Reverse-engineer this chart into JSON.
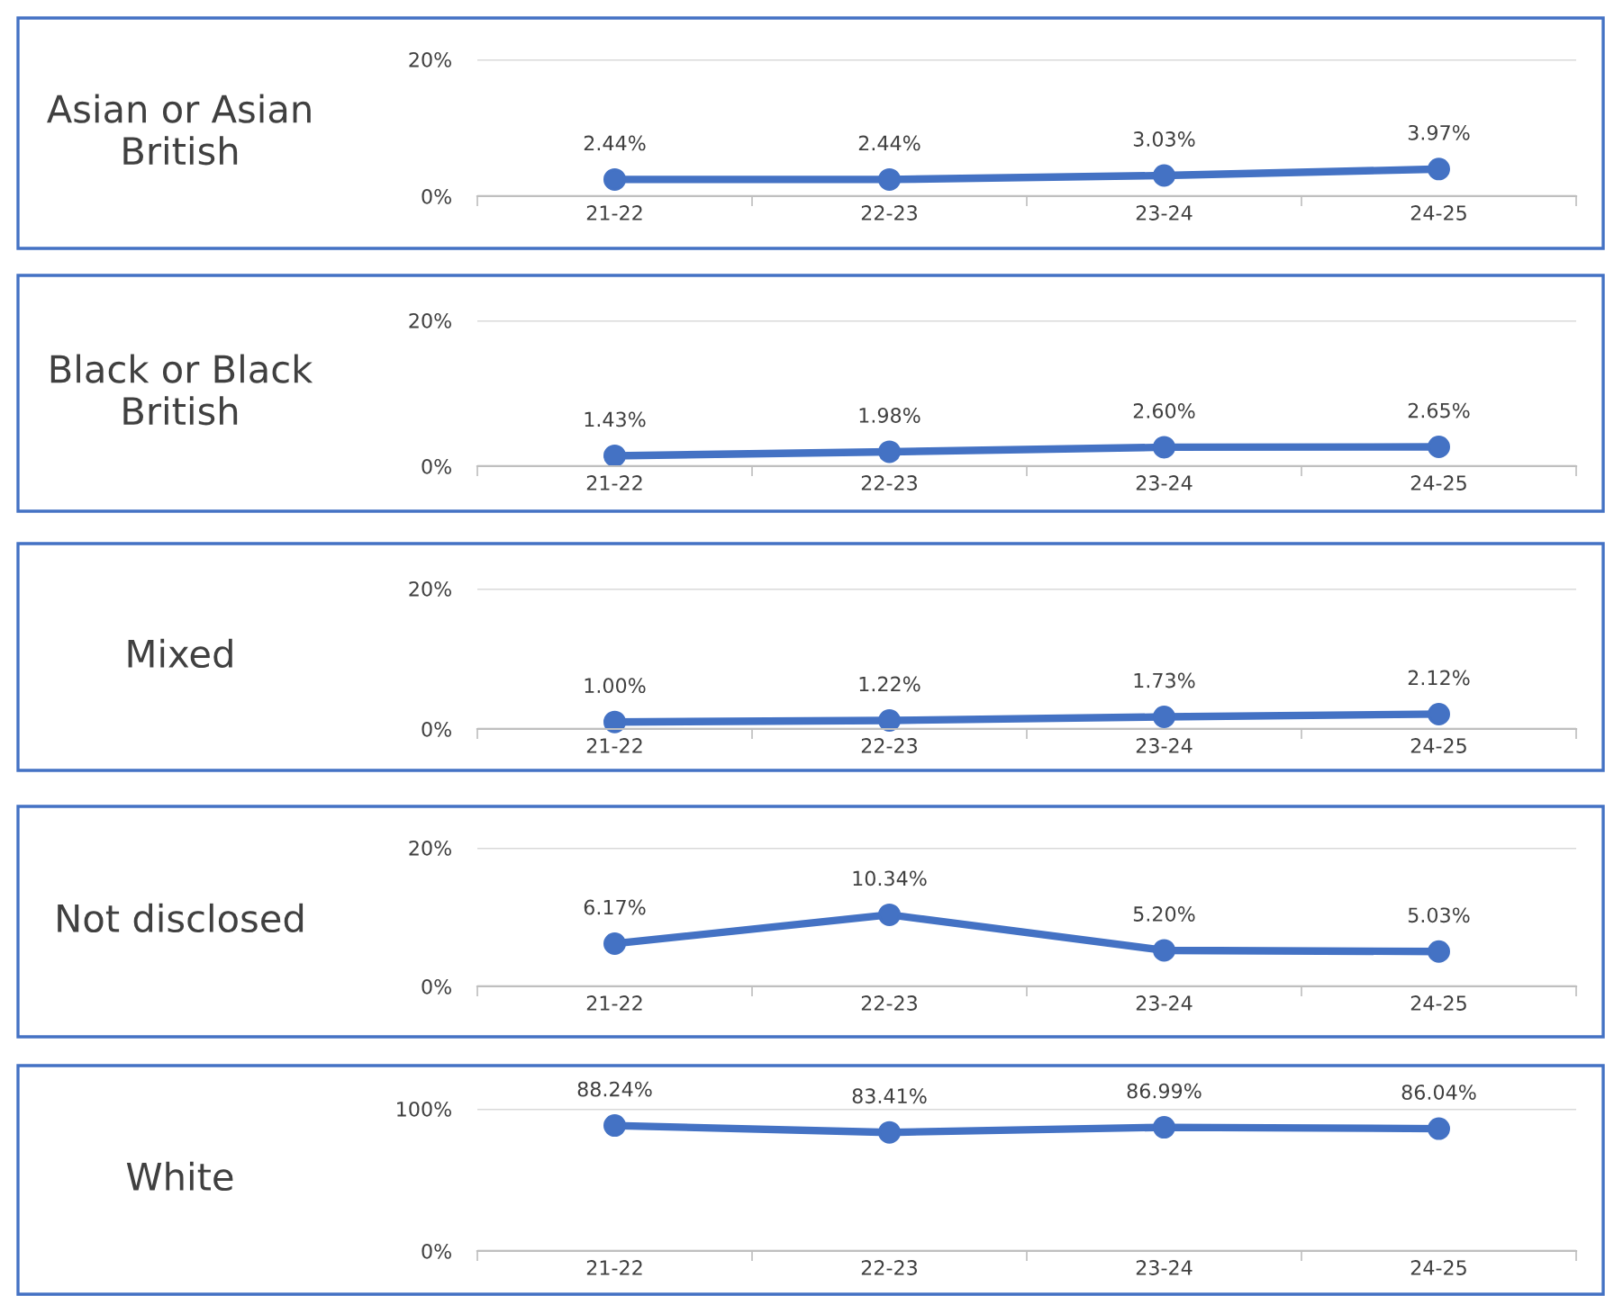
{
  "chart_data": [
    {
      "type": "line",
      "title": "Asian or Asian British",
      "categories": [
        "21-22",
        "22-23",
        "23-24",
        "24-25"
      ],
      "values": [
        2.44,
        2.44,
        3.03,
        3.97
      ],
      "value_labels": [
        "2.44%",
        "2.44%",
        "3.03%",
        "3.97%"
      ],
      "color": "#4472c4",
      "marker": "circle",
      "ylim": [
        0,
        20
      ],
      "yticks": [
        {
          "value": 0,
          "label": "0%"
        },
        {
          "value": 20,
          "label": "20%"
        }
      ],
      "grid": "y",
      "legend": false
    },
    {
      "type": "line",
      "title": "Black or Black British",
      "categories": [
        "21-22",
        "22-23",
        "23-24",
        "24-25"
      ],
      "values": [
        1.43,
        1.98,
        2.6,
        2.65
      ],
      "value_labels": [
        "1.43%",
        "1.98%",
        "2.60%",
        "2.65%"
      ],
      "color": "#4472c4",
      "marker": "circle",
      "ylim": [
        0,
        20
      ],
      "yticks": [
        {
          "value": 0,
          "label": "0%"
        },
        {
          "value": 20,
          "label": "20%"
        }
      ],
      "grid": "y",
      "legend": false
    },
    {
      "type": "line",
      "title": "Mixed",
      "categories": [
        "21-22",
        "22-23",
        "23-24",
        "24-25"
      ],
      "values": [
        1.0,
        1.22,
        1.73,
        2.12
      ],
      "value_labels": [
        "1.00%",
        "1.22%",
        "1.73%",
        "2.12%"
      ],
      "color": "#4472c4",
      "marker": "circle",
      "ylim": [
        0,
        20
      ],
      "yticks": [
        {
          "value": 0,
          "label": "0%"
        },
        {
          "value": 20,
          "label": "20%"
        }
      ],
      "grid": "y",
      "legend": false
    },
    {
      "type": "line",
      "title": "Not disclosed",
      "categories": [
        "21-22",
        "22-23",
        "23-24",
        "24-25"
      ],
      "values": [
        6.17,
        10.34,
        5.2,
        5.03
      ],
      "value_labels": [
        "6.17%",
        "10.34%",
        "5.20%",
        "5.03%"
      ],
      "color": "#4472c4",
      "marker": "circle",
      "ylim": [
        0,
        20
      ],
      "yticks": [
        {
          "value": 0,
          "label": "0%"
        },
        {
          "value": 20,
          "label": "20%"
        }
      ],
      "grid": "y",
      "legend": false
    },
    {
      "type": "line",
      "title": "White",
      "categories": [
        "21-22",
        "22-23",
        "23-24",
        "24-25"
      ],
      "values": [
        88.24,
        83.41,
        86.99,
        86.04
      ],
      "value_labels": [
        "88.24%",
        "83.41%",
        "86.99%",
        "86.04%"
      ],
      "color": "#4472c4",
      "marker": "circle",
      "ylim": [
        0,
        100
      ],
      "yticks": [
        {
          "value": 0,
          "label": "0%"
        },
        {
          "value": 100,
          "label": "100%"
        }
      ],
      "grid": "y",
      "legend": false
    }
  ]
}
